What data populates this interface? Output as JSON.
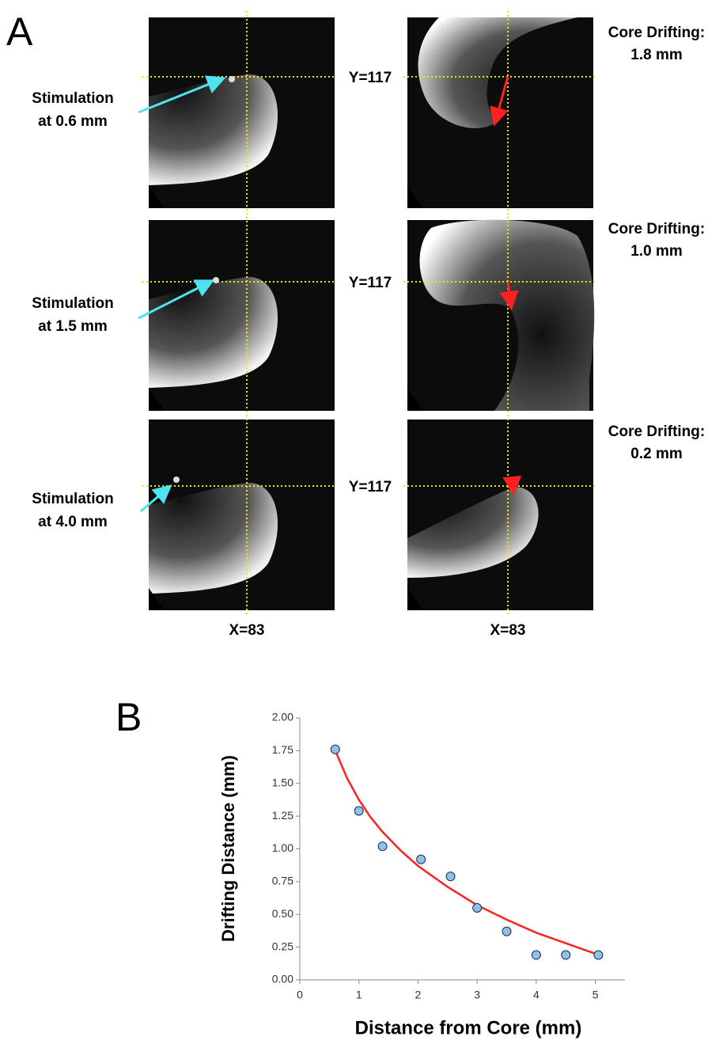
{
  "panel_a": {
    "label": "A",
    "rows": [
      {
        "stimulation": [
          "Stimulation",
          "at 0.6 mm"
        ],
        "y_label": "Y=117",
        "core_drifting": [
          "Core Drifting:",
          "1.8 mm"
        ]
      },
      {
        "stimulation": [
          "Stimulation",
          "at 1.5 mm"
        ],
        "y_label": "Y=117",
        "core_drifting": [
          "Core Drifting:",
          "1.0 mm"
        ]
      },
      {
        "stimulation": [
          "Stimulation",
          "at 4.0 mm"
        ],
        "y_label": "Y=117",
        "core_drifting": [
          "Core Drifting:",
          "0.2 mm"
        ]
      }
    ],
    "x_labels": [
      "X=83",
      "X=83"
    ]
  },
  "chart_data": {
    "type": "scatter",
    "title": "B",
    "x_label": "Distance from Core (mm)",
    "y_label": "Drifting Distance (mm)",
    "xlim": [
      0,
      5.5
    ],
    "xticks": [
      0,
      1,
      2,
      3,
      4,
      5
    ],
    "ylim": [
      0,
      2
    ],
    "yticks": [
      {
        "value": 0,
        "label": "0.00"
      },
      {
        "value": 0.25,
        "label": "0.25"
      },
      {
        "value": 0.5,
        "label": "0.50"
      },
      {
        "value": 0.75,
        "label": "0.75"
      },
      {
        "value": 1,
        "label": "1.00"
      },
      {
        "value": 1.25,
        "label": "1.25"
      },
      {
        "value": 1.5,
        "label": "1.50"
      },
      {
        "value": 1.75,
        "label": "1.75"
      },
      {
        "value": 2,
        "label": "2.00"
      }
    ],
    "series": [
      {
        "color": "#ff2020",
        "style": "line",
        "x": [
          0.6,
          0.8,
          1,
          1.2,
          1.4,
          1.7,
          2,
          2.5,
          3,
          3.5,
          4,
          4.5,
          5
        ],
        "values": [
          1.75,
          1.54,
          1.375,
          1.24,
          1.13,
          0.99,
          0.87,
          0.71,
          0.57,
          0.46,
          0.36,
          0.28,
          0.2
        ]
      },
      {
        "color": "#8fc1e8",
        "style": "points",
        "x": [
          0.6,
          1.0,
          1.4,
          2.05,
          2.55,
          3.0,
          3.5,
          4.0,
          4.5,
          5.05
        ],
        "values": [
          1.76,
          1.29,
          1.02,
          0.92,
          0.79,
          0.55,
          0.37,
          0.19,
          0.19,
          0.19
        ]
      }
    ]
  }
}
